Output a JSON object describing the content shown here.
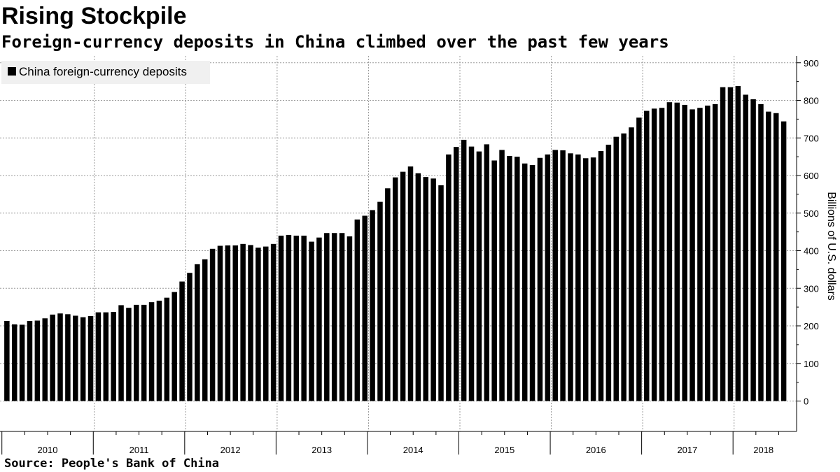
{
  "title": "Rising Stockpile",
  "subtitle": "Foreign-currency deposits in China climbed over the past few years",
  "source": "Source:  People's Bank of China",
  "chart_data": {
    "type": "bar",
    "legend": {
      "label": "China foreign-currency deposits",
      "placement": "top-left"
    },
    "ylabel": "Billions of U.S. dollars",
    "ylim": [
      -80,
      910
    ],
    "y_ticks": [
      0,
      100,
      200,
      300,
      400,
      500,
      600,
      700,
      800,
      900
    ],
    "y_axis_side": "right",
    "grid": true,
    "bar_color": "#000000",
    "start_month": "2010-01",
    "x_year_labels": [
      "2010",
      "2011",
      "2012",
      "2013",
      "2014",
      "2015",
      "2016",
      "2017",
      "2018"
    ],
    "values": [
      213,
      204,
      203,
      213,
      214,
      220,
      230,
      233,
      231,
      227,
      223,
      226,
      236,
      236,
      237,
      255,
      248,
      256,
      256,
      263,
      267,
      275,
      290,
      318,
      341,
      364,
      377,
      405,
      413,
      414,
      414,
      418,
      415,
      408,
      411,
      418,
      440,
      442,
      440,
      440,
      424,
      435,
      447,
      447,
      447,
      438,
      483,
      493,
      508,
      530,
      566,
      595,
      610,
      624,
      606,
      596,
      592,
      574,
      656,
      676,
      695,
      677,
      664,
      683,
      640,
      668,
      652,
      650,
      632,
      628,
      647,
      656,
      668,
      667,
      659,
      656,
      646,
      648,
      665,
      682,
      703,
      712,
      728,
      754,
      772,
      778,
      780,
      795,
      794,
      788,
      776,
      780,
      786,
      790,
      835,
      835,
      838,
      815,
      803,
      790,
      770,
      766,
      744
    ]
  }
}
